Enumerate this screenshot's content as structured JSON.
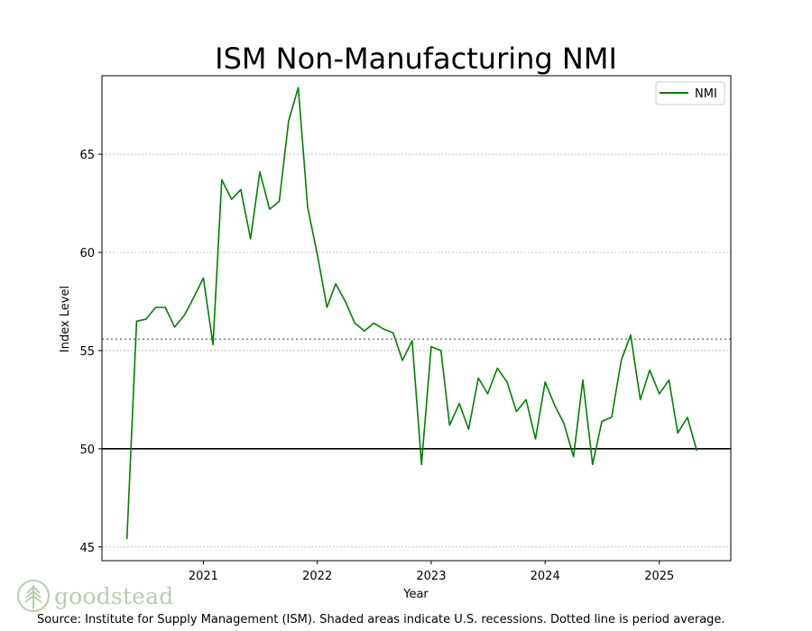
{
  "logo": {
    "text": "goodstead",
    "icon": "tree-icon",
    "color": "#b9cdb0"
  },
  "source_note": "Source:  Institute for Supply Management (ISM). Shaded areas indicate U.S. recessions. Dotted line is period average.",
  "chart_data": {
    "type": "line",
    "title": "ISM Non-Manufacturing NMI",
    "xlabel": "Year",
    "ylabel": "Index Level",
    "x_tick_labels": [
      "2021",
      "2022",
      "2023",
      "2024",
      "2025"
    ],
    "y_ticks": [
      45,
      50,
      55,
      60,
      65
    ],
    "xlim": [
      "2020-02-11",
      "2025-08-18"
    ],
    "ylim": [
      44.3,
      69.0
    ],
    "grid": "horizontal dotted",
    "legend_position": "top-right",
    "reference_lines": [
      {
        "y": 50,
        "style": "solid",
        "color": "#000000"
      },
      {
        "y": 55.58,
        "style": "dotted",
        "color": "#808080"
      }
    ],
    "series": [
      {
        "name": "NMI",
        "color": "#008000",
        "x": [
          "2020-05",
          "2020-06",
          "2020-07",
          "2020-08",
          "2020-09",
          "2020-10",
          "2020-11",
          "2020-12",
          "2021-01",
          "2021-02",
          "2021-03",
          "2021-04",
          "2021-05",
          "2021-06",
          "2021-07",
          "2021-08",
          "2021-09",
          "2021-10",
          "2021-11",
          "2021-12",
          "2022-01",
          "2022-02",
          "2022-03",
          "2022-04",
          "2022-05",
          "2022-06",
          "2022-07",
          "2022-08",
          "2022-09",
          "2022-10",
          "2022-11",
          "2022-12",
          "2023-01",
          "2023-02",
          "2023-03",
          "2023-04",
          "2023-05",
          "2023-06",
          "2023-07",
          "2023-08",
          "2023-09",
          "2023-10",
          "2023-11",
          "2023-12",
          "2024-01",
          "2024-02",
          "2024-03",
          "2024-04",
          "2024-05",
          "2024-06",
          "2024-07",
          "2024-08",
          "2024-09",
          "2024-10",
          "2024-11",
          "2024-12",
          "2025-01",
          "2025-02",
          "2025-03",
          "2025-04",
          "2025-05"
        ],
        "values": [
          45.4,
          56.5,
          56.6,
          57.2,
          57.2,
          56.2,
          56.8,
          57.7,
          58.7,
          55.3,
          63.7,
          62.7,
          63.2,
          60.7,
          64.1,
          62.2,
          62.6,
          66.7,
          68.4,
          62.3,
          59.9,
          57.2,
          58.4,
          57.5,
          56.4,
          56.0,
          56.4,
          56.1,
          55.9,
          54.5,
          55.5,
          49.2,
          55.2,
          55.0,
          51.2,
          52.3,
          51.0,
          53.6,
          52.8,
          54.1,
          53.4,
          51.9,
          52.5,
          50.5,
          53.4,
          52.2,
          51.3,
          49.6,
          53.5,
          49.2,
          51.4,
          51.6,
          54.5,
          55.8,
          52.5,
          54.0,
          52.8,
          53.5,
          50.8,
          51.6,
          49.9
        ]
      }
    ]
  }
}
